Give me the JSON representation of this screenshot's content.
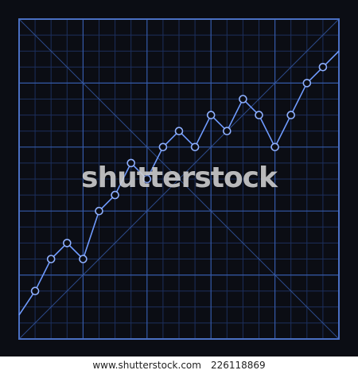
{
  "colors": {
    "background": "#0b0d14",
    "frame": "#4a6fc2",
    "grid_major": "#355aa8",
    "grid_minor": "#1c2f5c",
    "line": "#6f9bff",
    "marker_fill": "#0b0d14",
    "marker_stroke": "#8fb0ff"
  },
  "watermark": {
    "text": "shutterstock"
  },
  "footer": {
    "site": "www.shutterstock.com",
    "image_id": "226118869"
  },
  "chart_data": {
    "type": "line",
    "title": "",
    "xlabel": "",
    "ylabel": "",
    "xlim": [
      0,
      20
    ],
    "ylim": [
      0,
      20
    ],
    "grid": true,
    "grid_major_step": 4,
    "grid_minor_step": 1,
    "diagonal_guides": true,
    "series": [
      {
        "x": [
          0,
          1,
          2,
          3,
          4,
          5,
          6,
          7,
          8,
          9,
          10,
          11,
          12,
          13,
          14,
          15,
          16,
          17,
          18,
          19,
          20
        ],
        "y": [
          1.5,
          3,
          5,
          6,
          5,
          8,
          9,
          11,
          10,
          12,
          13,
          12,
          14,
          13,
          15,
          14,
          12,
          14,
          16,
          17,
          18
        ],
        "markers": [
          false,
          true,
          true,
          true,
          true,
          true,
          true,
          true,
          true,
          true,
          true,
          true,
          true,
          true,
          true,
          true,
          true,
          true,
          true,
          true,
          false
        ]
      }
    ]
  }
}
